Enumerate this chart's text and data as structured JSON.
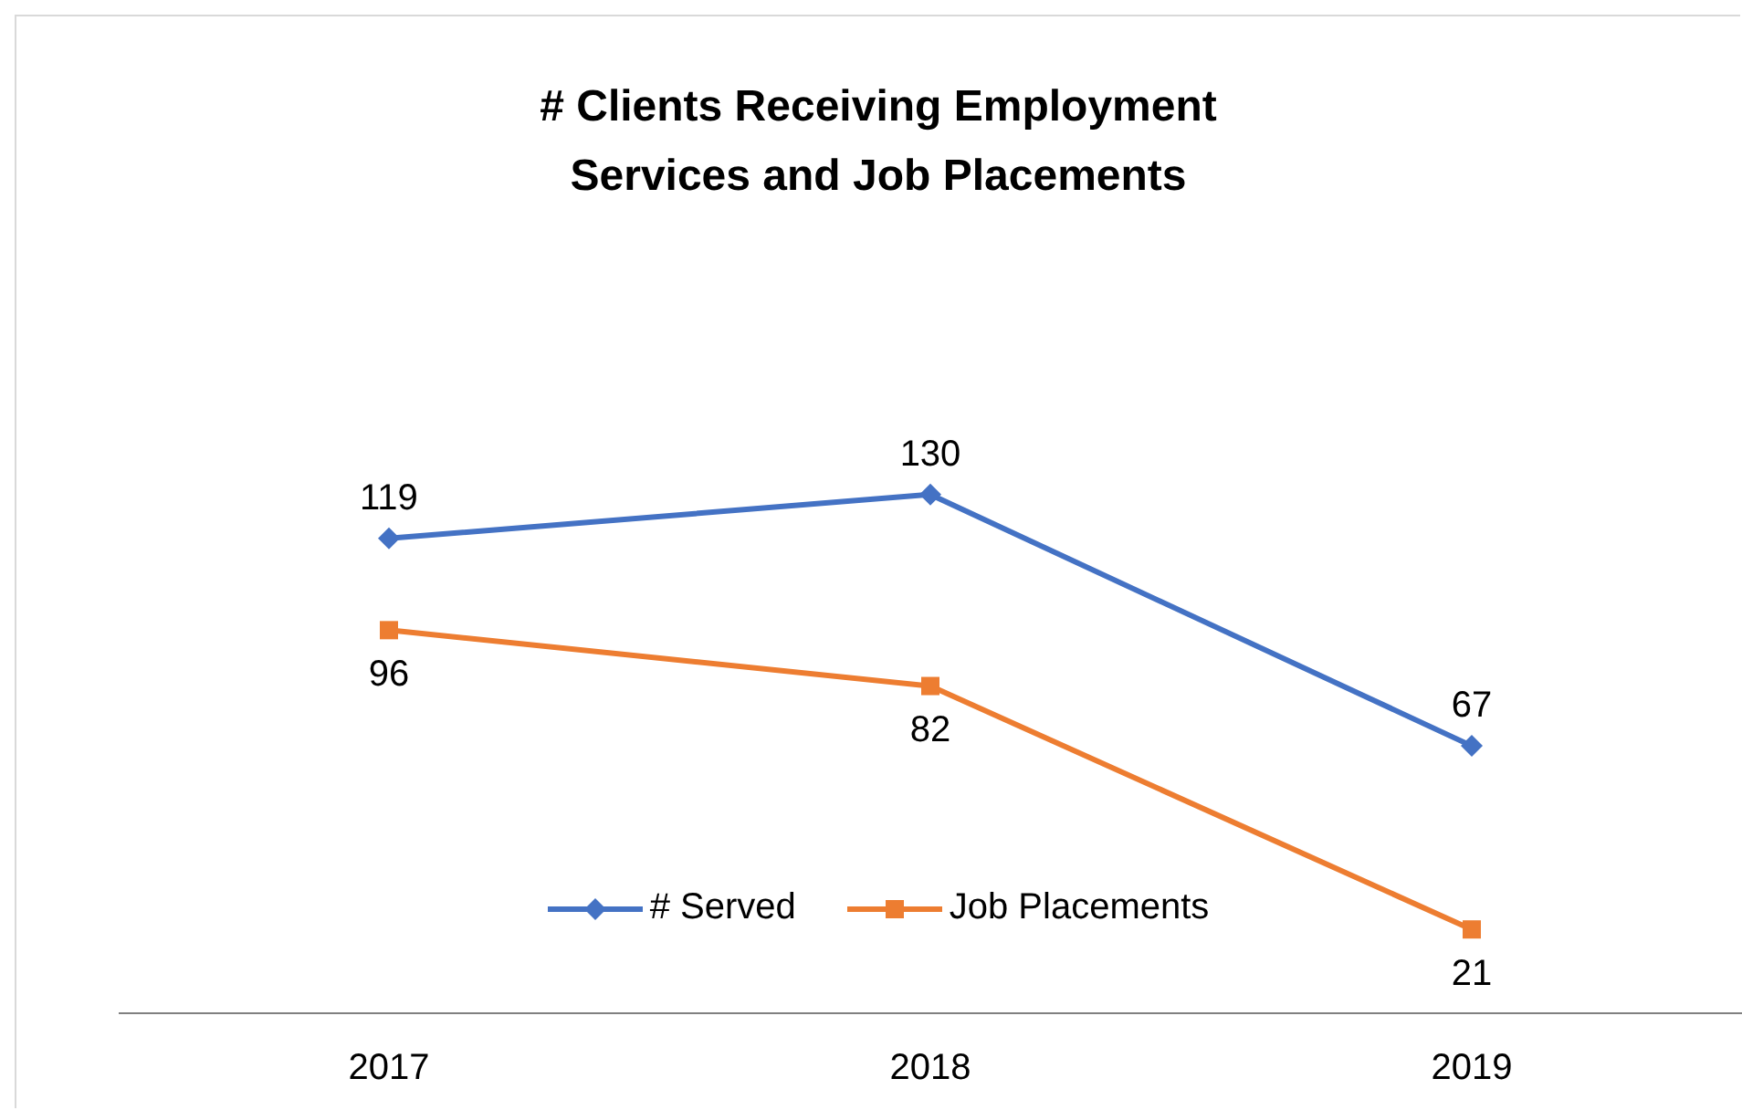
{
  "chart_data": {
    "type": "line",
    "title": "# Clients Receiving Employment Services  and Job Placements",
    "categories": [
      "2017",
      "2018",
      "2019"
    ],
    "series": [
      {
        "name": "# Served",
        "color": "#4472c4",
        "marker": "diamond",
        "values": [
          119,
          130,
          67
        ]
      },
      {
        "name": "Job Placements",
        "color": "#ed7d31",
        "marker": "square",
        "values": [
          96,
          82,
          21
        ]
      }
    ],
    "data_labels": true,
    "legend": "bottom",
    "grid": false
  }
}
